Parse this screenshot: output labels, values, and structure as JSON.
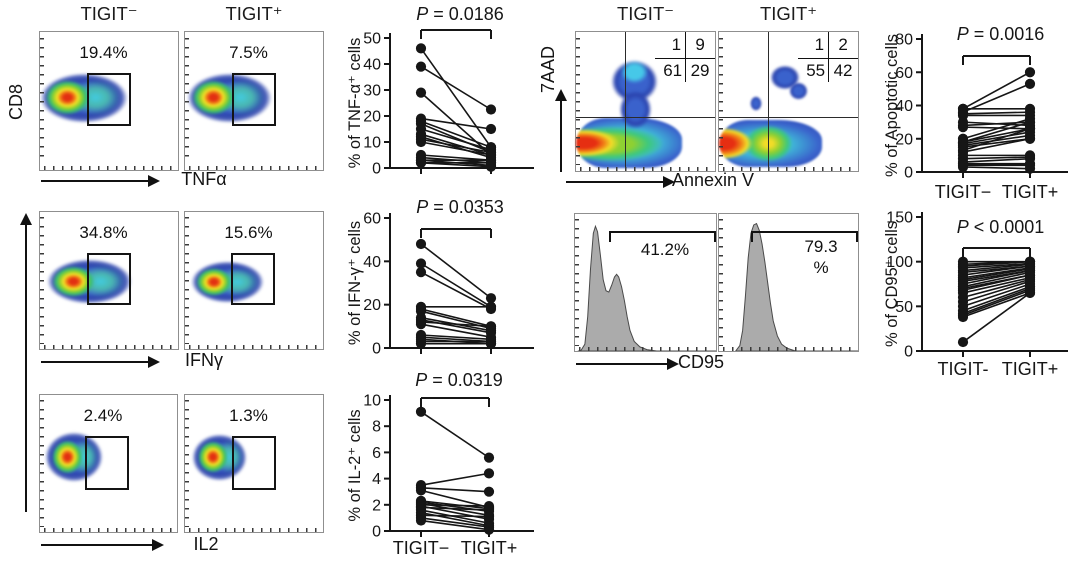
{
  "figure": {
    "left": {
      "col_titles": [
        "TIGIT⁻",
        "TIGIT⁺"
      ],
      "rows": [
        {
          "ylabel": "CD8",
          "xlabel": "TNFα",
          "gate_left": "19.4%",
          "gate_right": "7.5%"
        },
        {
          "xlabel": "IFNγ",
          "gate_left": "34.8%",
          "gate_right": "15.6%"
        },
        {
          "xlabel": "IL2",
          "gate_left": "2.4%",
          "gate_right": "1.3%"
        }
      ]
    },
    "right": {
      "col_titles": [
        "TIGIT⁻",
        "TIGIT⁺"
      ],
      "quadrant": {
        "ylabel": "7AAD",
        "xlabel": "Annexin V",
        "stats_left": {
          "ul": "1",
          "ur": "9",
          "ll": "61",
          "lr": "29"
        },
        "stats_right": {
          "ul": "1",
          "ur": "2",
          "ll": "55",
          "lr": "42"
        }
      },
      "histogram": {
        "xlabel": "CD95",
        "gate_left_lines": [
          "41.2%"
        ],
        "gate_right_lines": [
          "79.3",
          "%"
        ]
      }
    }
  },
  "chart_data": [
    {
      "id": "tnf",
      "type": "line",
      "subtype": "paired-scatter",
      "title": "P = 0.0186",
      "p_label": "P = 0.0186",
      "ylabel": "% of TNF-α⁺ cells",
      "xlabel": "",
      "ylim": [
        0,
        50
      ],
      "yticks": [
        0,
        10,
        20,
        30,
        40,
        50
      ],
      "categories": [
        "TIGIT−",
        "TIGIT+"
      ],
      "show_xlabels": false,
      "pairs": [
        [
          46,
          8
        ],
        [
          39,
          22.5
        ],
        [
          29,
          5
        ],
        [
          19,
          15
        ],
        [
          18,
          8
        ],
        [
          17,
          6
        ],
        [
          15,
          7
        ],
        [
          13,
          5
        ],
        [
          12,
          4
        ],
        [
          11,
          6
        ],
        [
          10,
          5
        ],
        [
          5,
          3
        ],
        [
          4,
          2
        ],
        [
          3,
          3
        ],
        [
          3,
          1
        ],
        [
          2,
          2
        ],
        [
          2,
          0.5
        ]
      ]
    },
    {
      "id": "ifn",
      "type": "line",
      "subtype": "paired-scatter",
      "title": "P = 0.0353",
      "p_label": "P = 0.0353",
      "ylabel": "% of IFN-γ⁺ cells",
      "xlabel": "",
      "ylim": [
        0,
        60
      ],
      "yticks": [
        0,
        20,
        40,
        60
      ],
      "categories": [
        "TIGIT−",
        "TIGIT+"
      ],
      "show_xlabels": false,
      "pairs": [
        [
          48,
          23
        ],
        [
          39,
          19
        ],
        [
          35,
          18
        ],
        [
          19,
          19
        ],
        [
          18,
          10
        ],
        [
          17,
          9
        ],
        [
          14,
          8
        ],
        [
          13,
          7
        ],
        [
          12,
          10
        ],
        [
          11,
          5
        ],
        [
          6,
          4
        ],
        [
          5,
          3
        ],
        [
          4,
          2
        ],
        [
          3,
          3
        ],
        [
          2,
          2
        ]
      ]
    },
    {
      "id": "il2",
      "type": "line",
      "subtype": "paired-scatter",
      "title": "P = 0.0319",
      "p_label": "P = 0.0319",
      "ylabel": "% of IL-2⁺ cells",
      "xlabel": "",
      "ylim": [
        0,
        10
      ],
      "yticks": [
        0,
        2,
        4,
        6,
        8,
        10
      ],
      "categories": [
        "TIGIT−",
        "TIGIT+"
      ],
      "show_xlabels": true,
      "pairs": [
        [
          9.1,
          5.6
        ],
        [
          3.5,
          4.4
        ],
        [
          3.3,
          3.0
        ],
        [
          3.1,
          1.8
        ],
        [
          2.3,
          1.7
        ],
        [
          2.2,
          1.5
        ],
        [
          2.1,
          1.2
        ],
        [
          2.0,
          1.9
        ],
        [
          1.9,
          0.9
        ],
        [
          1.8,
          1.6
        ],
        [
          1.6,
          0.6
        ],
        [
          1.4,
          0.4
        ],
        [
          1.2,
          1.1
        ],
        [
          1.0,
          0.3
        ],
        [
          0.8,
          0.1
        ]
      ]
    },
    {
      "id": "apop",
      "type": "line",
      "subtype": "paired-scatter",
      "title": "P = 0.0016",
      "p_label": "P = 0.0016",
      "ylabel": "% of Apoptotic cells",
      "xlabel": "",
      "ylim": [
        0,
        80
      ],
      "yticks": [
        0,
        20,
        40,
        60,
        80
      ],
      "categories": [
        "TIGIT−",
        "TIGIT+"
      ],
      "show_xlabels": true,
      "pairs": [
        [
          38,
          60
        ],
        [
          36,
          53
        ],
        [
          38,
          38
        ],
        [
          35,
          36
        ],
        [
          34,
          34
        ],
        [
          30,
          28
        ],
        [
          28,
          30
        ],
        [
          27,
          26
        ],
        [
          20,
          32
        ],
        [
          18,
          30
        ],
        [
          18,
          26
        ],
        [
          17,
          24
        ],
        [
          16,
          22
        ],
        [
          15,
          20
        ],
        [
          13,
          26
        ],
        [
          12,
          20
        ],
        [
          10,
          10
        ],
        [
          8,
          9
        ],
        [
          6,
          8
        ],
        [
          5,
          5
        ],
        [
          4,
          4
        ],
        [
          3,
          2
        ]
      ]
    },
    {
      "id": "cd95",
      "type": "line",
      "subtype": "paired-scatter",
      "title": "P < 0.0001",
      "p_label": "P < 0.0001",
      "ylabel": "% of CD95⁺ cells",
      "xlabel": "",
      "ylim": [
        0,
        150
      ],
      "yticks": [
        0,
        50,
        100,
        150
      ],
      "categories": [
        "TIGIT-",
        "TIGIT+"
      ],
      "show_xlabels": true,
      "pairs": [
        [
          100,
          100
        ],
        [
          97,
          100
        ],
        [
          95,
          100
        ],
        [
          93,
          98
        ],
        [
          90,
          97
        ],
        [
          88,
          95
        ],
        [
          85,
          95
        ],
        [
          82,
          93
        ],
        [
          80,
          92
        ],
        [
          78,
          90
        ],
        [
          75,
          90
        ],
        [
          72,
          88
        ],
        [
          70,
          85
        ],
        [
          68,
          85
        ],
        [
          65,
          82
        ],
        [
          60,
          80
        ],
        [
          55,
          78
        ],
        [
          50,
          75
        ],
        [
          45,
          72
        ],
        [
          42,
          70
        ],
        [
          40,
          68
        ],
        [
          38,
          65
        ],
        [
          10,
          65
        ]
      ]
    }
  ]
}
